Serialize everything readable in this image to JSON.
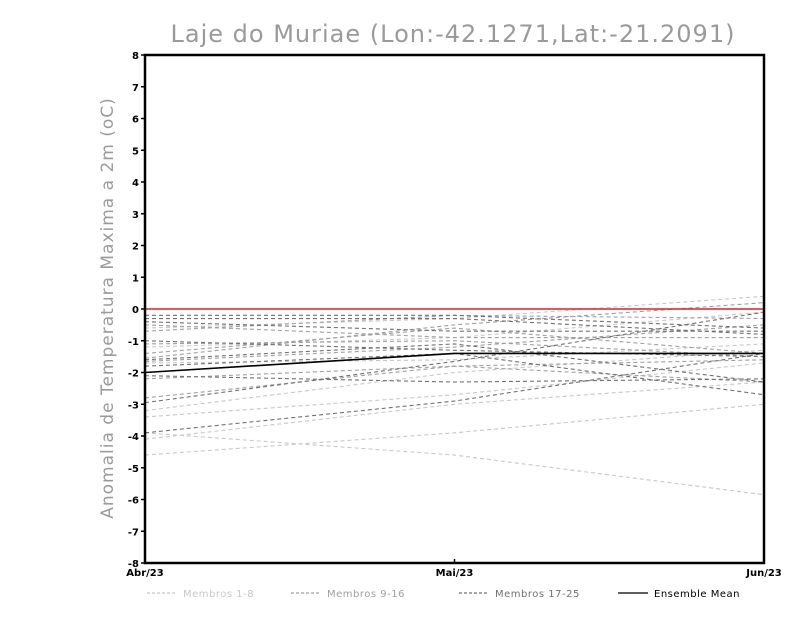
{
  "chart_data": {
    "type": "line",
    "title": "Laje do Muriae (Lon:-42.1271,Lat:-21.2091)",
    "ylabel": "Anomalia de Temperatura Maxima a 2m (oC)",
    "xlabel": "",
    "categories": [
      "Abr/23",
      "Mai/23",
      "Jun/23"
    ],
    "ylim": [
      -8,
      8
    ],
    "yticks": [
      "-8",
      "-7",
      "-6",
      "-5",
      "-4",
      "-3",
      "-2",
      "-1",
      "0",
      "1",
      "2",
      "3",
      "4",
      "5",
      "6",
      "7",
      "8"
    ],
    "reference_line": {
      "y": 0,
      "color": "#e02020"
    },
    "groups": [
      {
        "legend": "Membros 1-8",
        "color": "#c8c8c8",
        "dash": "dashed"
      },
      {
        "legend": "Membros 9-16",
        "color": "#a0a0a0",
        "dash": "dashed"
      },
      {
        "legend": "Membros 17-25",
        "color": "#707070",
        "dash": "dashed"
      },
      {
        "legend": "Ensemble Mean",
        "color": "#000000",
        "dash": "solid"
      }
    ],
    "series": [
      {
        "group": 0,
        "values": [
          -4.6,
          -3.9,
          -3.0
        ]
      },
      {
        "group": 0,
        "values": [
          -3.9,
          -4.6,
          -5.85
        ]
      },
      {
        "group": 0,
        "values": [
          -4.1,
          -3.0,
          -2.3
        ]
      },
      {
        "group": 0,
        "values": [
          -3.4,
          -2.7,
          -1.7
        ]
      },
      {
        "group": 0,
        "values": [
          -3.2,
          -2.0,
          -1.3
        ]
      },
      {
        "group": 0,
        "values": [
          -1.2,
          -0.9,
          -0.1
        ]
      },
      {
        "group": 0,
        "values": [
          -0.6,
          -0.3,
          0.4
        ]
      },
      {
        "group": 0,
        "values": [
          -1.7,
          -1.6,
          -1.1
        ]
      },
      {
        "group": 1,
        "values": [
          -1.55,
          -0.5,
          0.2
        ]
      },
      {
        "group": 1,
        "values": [
          -0.7,
          -0.2,
          -0.3
        ]
      },
      {
        "group": 1,
        "values": [
          -2.2,
          -1.8,
          -2.3
        ]
      },
      {
        "group": 1,
        "values": [
          -1.4,
          -0.6,
          -1.4
        ]
      },
      {
        "group": 1,
        "values": [
          -2.8,
          -1.8,
          -1.6
        ]
      },
      {
        "group": 1,
        "values": [
          -1.1,
          -1.0,
          -1.5
        ]
      },
      {
        "group": 1,
        "values": [
          -0.5,
          -0.9,
          -0.9
        ]
      },
      {
        "group": 1,
        "values": [
          -1.65,
          -1.2,
          -0.5
        ]
      },
      {
        "group": 2,
        "values": [
          -2.95,
          -1.65,
          -0.1
        ]
      },
      {
        "group": 2,
        "values": [
          -0.2,
          -0.2,
          -0.6
        ]
      },
      {
        "group": 2,
        "values": [
          -0.3,
          -0.3,
          -0.8
        ]
      },
      {
        "group": 2,
        "values": [
          -0.4,
          -0.7,
          -0.7
        ]
      },
      {
        "group": 2,
        "values": [
          -1.6,
          -1.1,
          -2.3
        ]
      },
      {
        "group": 2,
        "values": [
          -2.1,
          -2.3,
          -2.2
        ]
      },
      {
        "group": 2,
        "values": [
          -3.9,
          -2.9,
          -1.4
        ]
      },
      {
        "group": 2,
        "values": [
          -1.8,
          -1.4,
          -2.7
        ]
      },
      {
        "group": 2,
        "values": [
          -1.0,
          -1.3,
          -1.5
        ]
      },
      {
        "group": 3,
        "values": [
          -2.0,
          -1.4,
          -1.4
        ]
      }
    ]
  }
}
